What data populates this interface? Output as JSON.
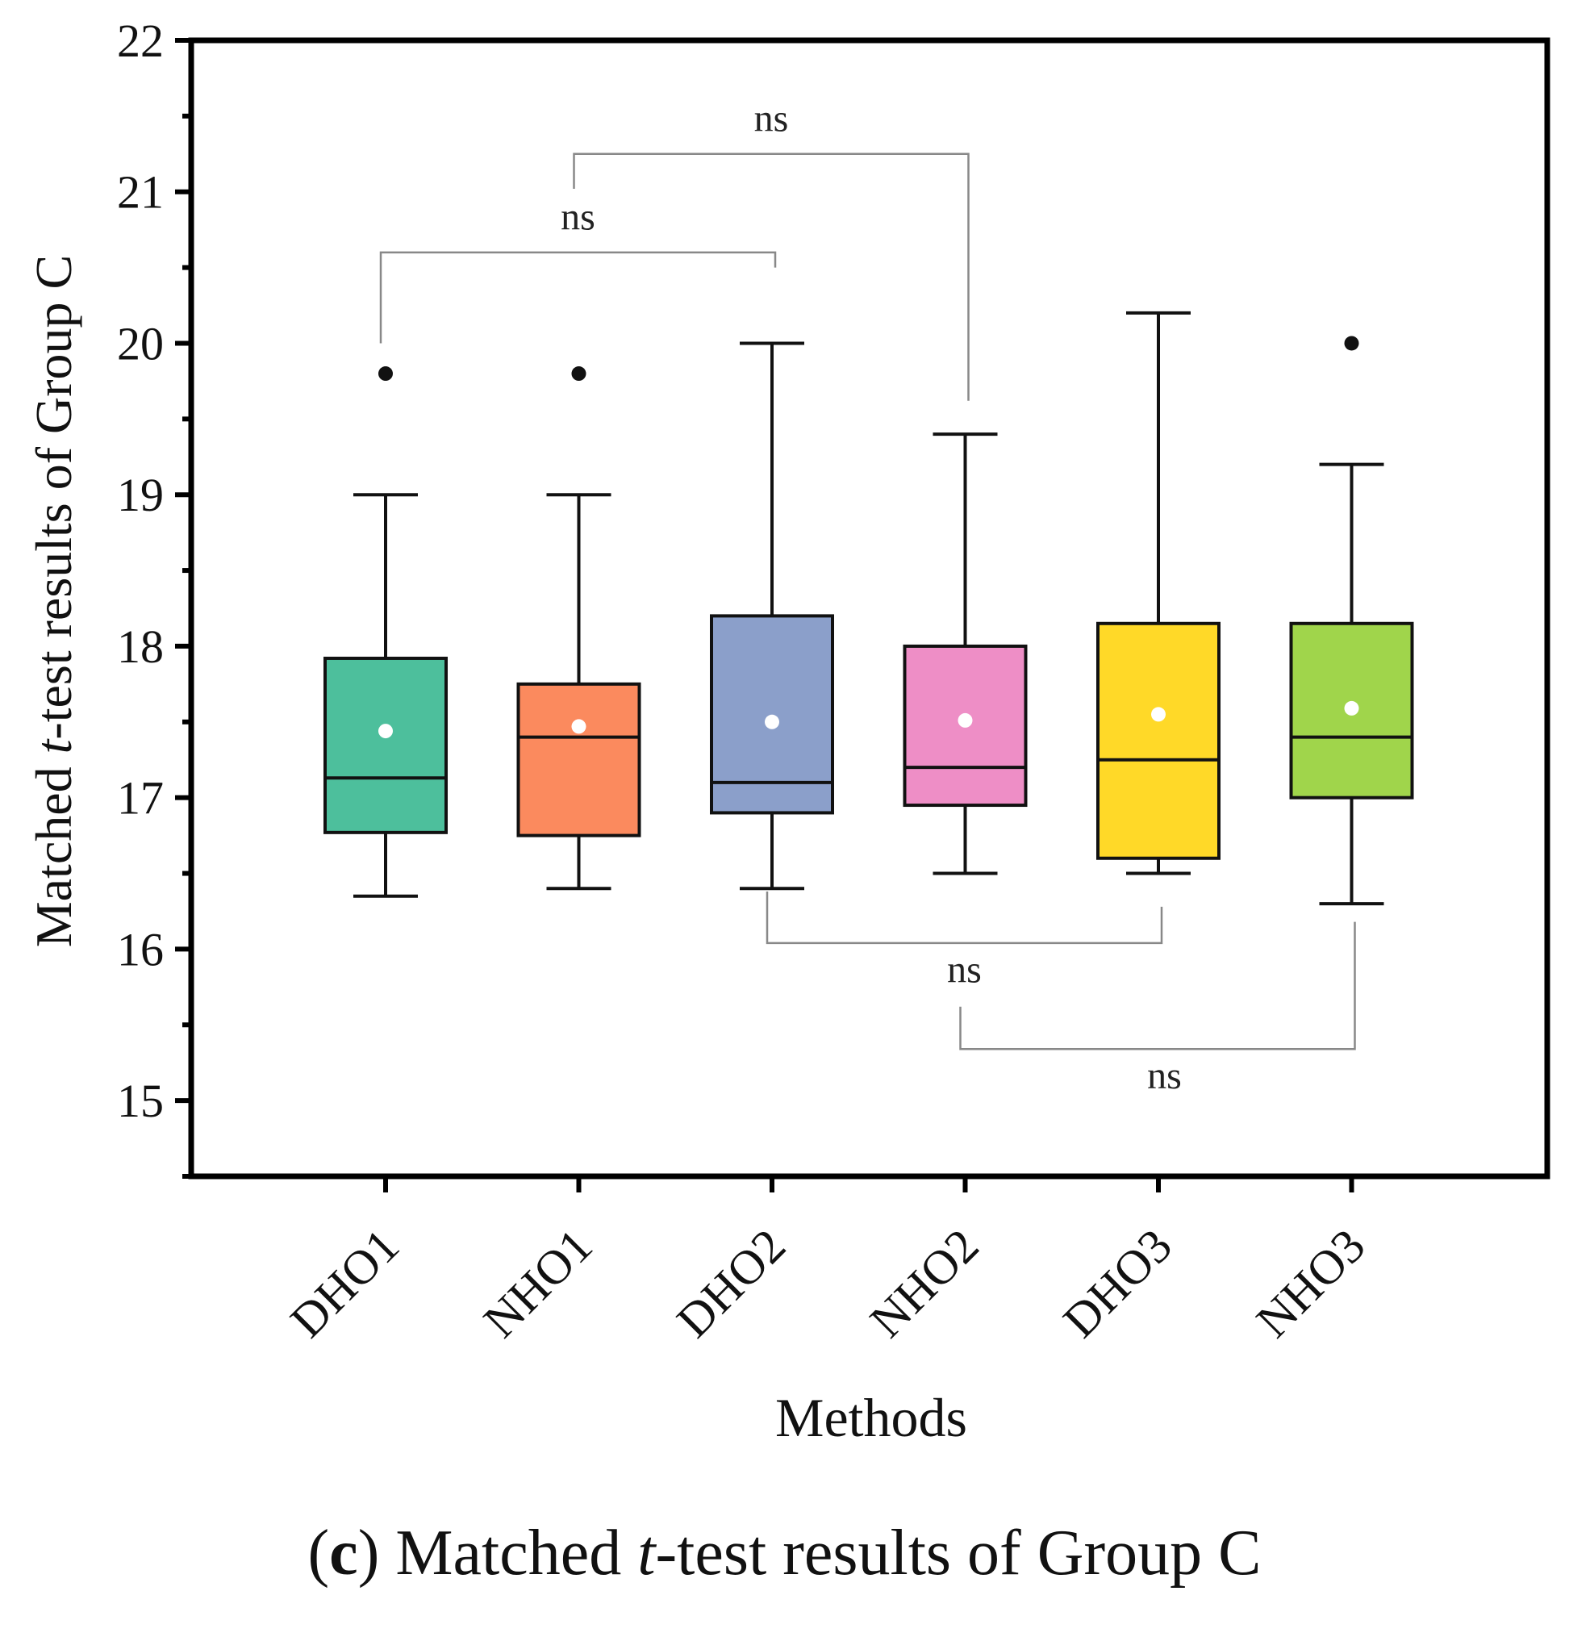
{
  "chart_data": {
    "type": "box",
    "title": "",
    "xlabel": "Methods",
    "ylabel_prefix": "Matched ",
    "ylabel_italic": "t",
    "ylabel_suffix": "-test results of Group C",
    "ylim": [
      14.5,
      22
    ],
    "yticks": [
      "15",
      "16",
      "17",
      "18",
      "19",
      "20",
      "21",
      "22"
    ],
    "categories": [
      "DHO1",
      "NHO1",
      "DHO2",
      "NHO2",
      "DHO3",
      "NHO3"
    ],
    "series": [
      {
        "name": "DHO1",
        "color": "#4dbf9c",
        "whisker_low": 16.35,
        "q1": 16.77,
        "median": 17.13,
        "q3": 17.92,
        "whisker_high": 19.0,
        "mean": 17.44,
        "outliers": [
          19.8
        ]
      },
      {
        "name": "NHO1",
        "color": "#fb8a5e",
        "whisker_low": 16.4,
        "q1": 16.75,
        "median": 17.4,
        "q3": 17.75,
        "whisker_high": 19.0,
        "mean": 17.47,
        "outliers": [
          19.8
        ]
      },
      {
        "name": "DHO2",
        "color": "#8b9fca",
        "whisker_low": 16.4,
        "q1": 16.9,
        "median": 17.1,
        "q3": 18.2,
        "whisker_high": 20.0,
        "mean": 17.5,
        "outliers": []
      },
      {
        "name": "NHO2",
        "color": "#ee8ec6",
        "whisker_low": 16.5,
        "q1": 16.95,
        "median": 17.2,
        "q3": 18.0,
        "whisker_high": 19.4,
        "mean": 17.51,
        "outliers": []
      },
      {
        "name": "DHO3",
        "color": "#ffd928",
        "whisker_low": 16.5,
        "q1": 16.6,
        "median": 17.25,
        "q3": 18.15,
        "whisker_high": 20.2,
        "mean": 17.55,
        "outliers": []
      },
      {
        "name": "NHO3",
        "color": "#a0d54b",
        "whisker_low": 16.3,
        "q1": 17.0,
        "median": 17.4,
        "q3": 18.15,
        "whisker_high": 19.2,
        "mean": 17.59,
        "outliers": [
          20.0
        ]
      }
    ],
    "significance_annotations": [
      {
        "from": "DHO1",
        "to": "DHO2",
        "label": "ns",
        "side": "above",
        "y_bar": 20.6,
        "y_ends": [
          20.0,
          20.5
        ],
        "label_y": 20.75
      },
      {
        "from": "NHO1",
        "to": "NHO2",
        "label": "ns",
        "side": "above",
        "y_bar": 21.25,
        "y_ends": [
          21.02,
          19.62
        ],
        "label_y": 21.4
      },
      {
        "from": "DHO2",
        "to": "DHO3",
        "label": "ns",
        "side": "below",
        "y_bar": 16.04,
        "y_ends": [
          16.38,
          16.28
        ],
        "label_y": 15.78
      },
      {
        "from": "NHO2",
        "to": "NHO3",
        "label": "ns",
        "side": "below",
        "y_bar": 15.34,
        "y_ends": [
          15.62,
          16.18
        ],
        "label_y": 15.08
      }
    ]
  },
  "caption": {
    "open": "(",
    "letter": "c",
    "close": ")",
    "prefix": " Matched ",
    "italic": "t",
    "suffix": "-test results of Group C"
  }
}
